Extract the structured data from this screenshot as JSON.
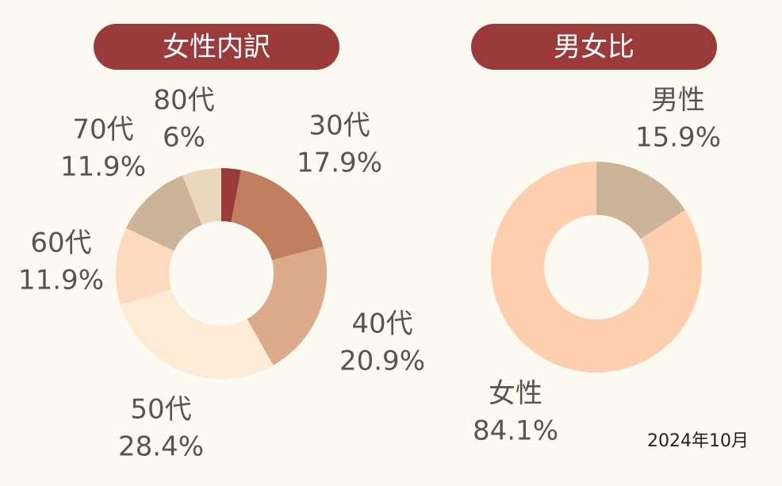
{
  "chart_data": [
    {
      "type": "donut",
      "title": "女性内訳",
      "categories": [
        null,
        "30代",
        "40代",
        "50代",
        "60代",
        "70代",
        "80代"
      ],
      "values": [
        3,
        17.9,
        20.9,
        28.4,
        11.9,
        11.9,
        6
      ],
      "value_labels": [
        null,
        "17.9%",
        "20.9%",
        "28.4%",
        "11.9%",
        "11.9%",
        "6%"
      ],
      "colors": [
        "#9b3a3a",
        "#c0805f",
        "#dcab8c",
        "#fdebd5",
        "#fed9bd",
        "#cbb498",
        "#ead7bd"
      ]
    },
    {
      "type": "donut",
      "title": "男女比",
      "categories": [
        "男性",
        "女性"
      ],
      "values": [
        15.9,
        84.1
      ],
      "value_labels": [
        "15.9%",
        "84.1%"
      ],
      "colors": [
        "#cbb498",
        "#fdcfae"
      ]
    }
  ],
  "footnote": "2024年10月"
}
